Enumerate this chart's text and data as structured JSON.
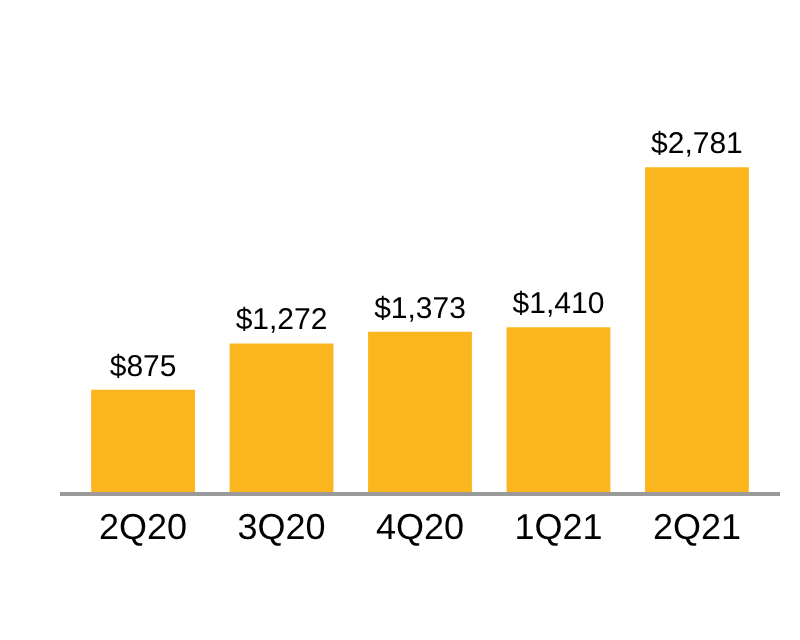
{
  "chart_data": {
    "type": "bar",
    "categories": [
      "2Q20",
      "3Q20",
      "4Q20",
      "1Q21",
      "2Q21"
    ],
    "values": [
      875,
      1272,
      1373,
      1410,
      2781
    ],
    "value_labels": [
      "$875",
      "$1,272",
      "$1,373",
      "$1,410",
      "$2,781"
    ],
    "color": "#fbb61e"
  }
}
